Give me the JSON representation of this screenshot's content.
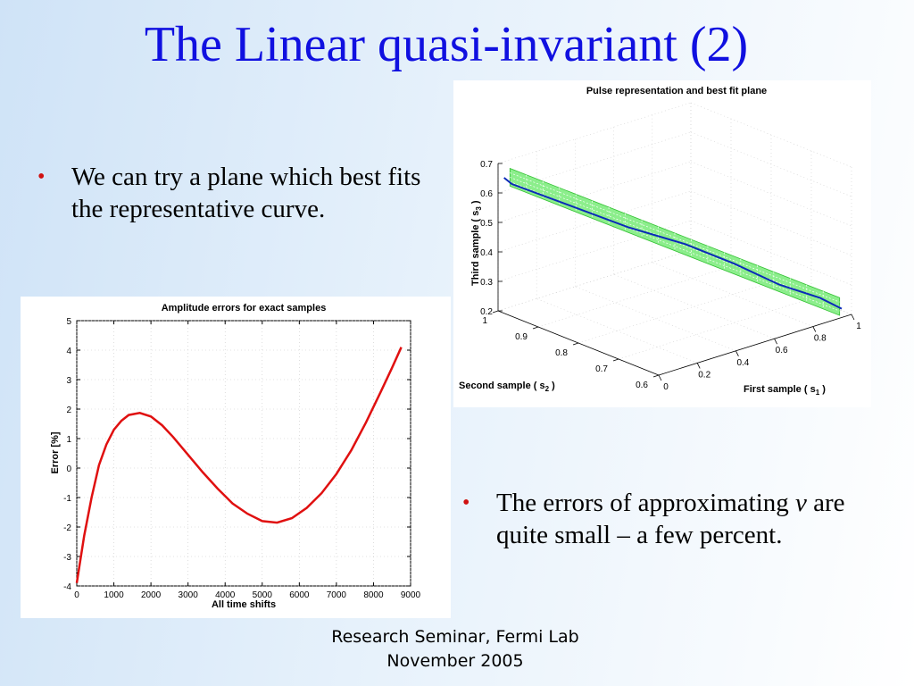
{
  "slide": {
    "title": "The Linear quasi-invariant (2)",
    "bullet1": "We can try a plane which best fits the representative curve.",
    "bullet2_prefix": "The errors of approximating ",
    "bullet2_var": "v",
    "bullet2_suffix": " are quite small – a few percent.",
    "footer_line1": "Research Seminar, Fermi Lab",
    "footer_line2": "November 2005",
    "bullet_color": "#d01010",
    "title_color": "#1010e0"
  },
  "chart_data": [
    {
      "type": "line",
      "title": "Amplitude errors for exact samples",
      "xlabel": "All time shifts",
      "ylabel": "Error [%]",
      "xlim": [
        0,
        9000
      ],
      "ylim": [
        -4,
        5
      ],
      "xticks": [
        0,
        1000,
        2000,
        3000,
        4000,
        5000,
        6000,
        7000,
        8000,
        9000
      ],
      "yticks": [
        -4,
        -3,
        -2,
        -1,
        0,
        1,
        2,
        3,
        4,
        5
      ],
      "grid": true,
      "series": [
        {
          "color": "#e01010",
          "x": [
            0,
            200,
            400,
            600,
            800,
            1000,
            1200,
            1400,
            1700,
            2000,
            2300,
            2600,
            3000,
            3400,
            3800,
            4200,
            4600,
            5000,
            5400,
            5800,
            6200,
            6600,
            7000,
            7400,
            7800,
            8200,
            8500,
            8750
          ],
          "y": [
            -3.9,
            -2.3,
            -1.0,
            0.1,
            0.8,
            1.3,
            1.6,
            1.8,
            1.87,
            1.75,
            1.45,
            1.05,
            0.45,
            -0.15,
            -0.7,
            -1.2,
            -1.55,
            -1.8,
            -1.85,
            -1.7,
            -1.35,
            -0.85,
            -0.2,
            0.6,
            1.55,
            2.6,
            3.4,
            4.1
          ]
        }
      ]
    },
    {
      "type": "scatter",
      "title": "Pulse representation and best fit plane",
      "xlabel": "First sample ( s",
      "xlabel_sub": "1",
      "ylabel": "Second sample ( s",
      "ylabel_sub": "2",
      "zlabel": "Third sample ( s",
      "zlabel_sub": "3",
      "xlim": [
        0,
        1
      ],
      "ylim": [
        0.6,
        1
      ],
      "zlim": [
        0.2,
        0.7
      ],
      "xticks": [
        0,
        0.2,
        0.4,
        0.6,
        0.8,
        1
      ],
      "yticks": [
        0.6,
        0.7,
        0.8,
        0.9,
        1
      ],
      "zticks": [
        0.2,
        0.3,
        0.4,
        0.5,
        0.6,
        0.7
      ],
      "grid": true,
      "plane_color": "#66e866",
      "curve_color": "#0a2ab8"
    }
  ]
}
